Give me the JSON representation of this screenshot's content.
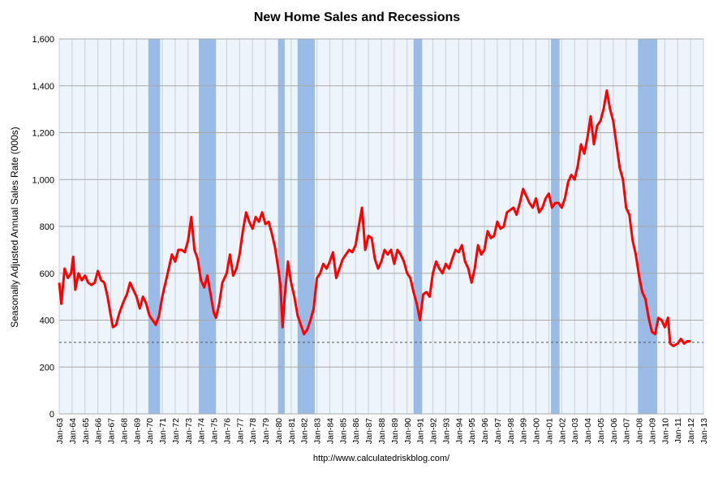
{
  "chart_data": {
    "type": "line",
    "title": "New Home Sales and Recessions",
    "ylabel": "Seasonally Adjusted Annual Sales Rate (000s)",
    "xlabel": "",
    "source": "http://www.calculatedriskblog.com/",
    "ylim": [
      0,
      1600
    ],
    "yticks": [
      "0",
      "200",
      "400",
      "600",
      "800",
      "1,000",
      "1,200",
      "1,400",
      "1,600"
    ],
    "x_range": [
      "1963-01",
      "2013-01"
    ],
    "xticks": [
      "Jan-63",
      "Jan-64",
      "Jan-65",
      "Jan-66",
      "Jan-67",
      "Jan-68",
      "Jan-69",
      "Jan-70",
      "Jan-71",
      "Jan-72",
      "Jan-73",
      "Jan-74",
      "Jan-75",
      "Jan-76",
      "Jan-77",
      "Jan-78",
      "Jan-79",
      "Jan-80",
      "Jan-81",
      "Jan-82",
      "Jan-83",
      "Jan-84",
      "Jan-85",
      "Jan-86",
      "Jan-87",
      "Jan-88",
      "Jan-89",
      "Jan-90",
      "Jan-91",
      "Jan-92",
      "Jan-93",
      "Jan-94",
      "Jan-95",
      "Jan-96",
      "Jan-97",
      "Jan-98",
      "Jan-99",
      "Jan-00",
      "Jan-01",
      "Jan-02",
      "Jan-03",
      "Jan-04",
      "Jan-05",
      "Jan-06",
      "Jan-07",
      "Jan-08",
      "Jan-09",
      "Jan-10",
      "Jan-11",
      "Jan-12",
      "Jan-13"
    ],
    "grid": true,
    "reference_line": 305,
    "recessions": [
      [
        "1969-12",
        "1970-11"
      ],
      [
        "1973-11",
        "1975-03"
      ],
      [
        "1980-01",
        "1980-07"
      ],
      [
        "1981-07",
        "1982-11"
      ],
      [
        "1990-07",
        "1991-03"
      ],
      [
        "2001-03",
        "2001-11"
      ],
      [
        "2007-12",
        "2009-06"
      ]
    ],
    "series": [
      {
        "color": "#ff0000",
        "recession_color": "#99bbe6",
        "points": [
          [
            "1963-01",
            560
          ],
          [
            "1963-03",
            470
          ],
          [
            "1963-06",
            620
          ],
          [
            "1963-09",
            580
          ],
          [
            "1963-12",
            600
          ],
          [
            "1964-02",
            670
          ],
          [
            "1964-04",
            530
          ],
          [
            "1964-07",
            600
          ],
          [
            "1964-10",
            570
          ],
          [
            "1965-01",
            590
          ],
          [
            "1965-04",
            560
          ],
          [
            "1965-07",
            550
          ],
          [
            "1965-10",
            560
          ],
          [
            "1966-01",
            610
          ],
          [
            "1966-04",
            570
          ],
          [
            "1966-07",
            560
          ],
          [
            "1966-10",
            500
          ],
          [
            "1967-01",
            420
          ],
          [
            "1967-03",
            370
          ],
          [
            "1967-06",
            380
          ],
          [
            "1967-09",
            430
          ],
          [
            "1968-01",
            480
          ],
          [
            "1968-04",
            510
          ],
          [
            "1968-07",
            560
          ],
          [
            "1968-10",
            530
          ],
          [
            "1969-01",
            500
          ],
          [
            "1969-04",
            450
          ],
          [
            "1969-07",
            500
          ],
          [
            "1969-10",
            470
          ],
          [
            "1970-01",
            420
          ],
          [
            "1970-04",
            400
          ],
          [
            "1970-07",
            380
          ],
          [
            "1970-10",
            420
          ],
          [
            "1971-01",
            500
          ],
          [
            "1971-04",
            560
          ],
          [
            "1971-07",
            620
          ],
          [
            "1971-10",
            680
          ],
          [
            "1972-01",
            650
          ],
          [
            "1972-04",
            700
          ],
          [
            "1972-07",
            700
          ],
          [
            "1972-10",
            690
          ],
          [
            "1973-01",
            740
          ],
          [
            "1973-04",
            840
          ],
          [
            "1973-07",
            700
          ],
          [
            "1973-10",
            660
          ],
          [
            "1974-01",
            570
          ],
          [
            "1974-04",
            540
          ],
          [
            "1974-07",
            590
          ],
          [
            "1974-10",
            510
          ],
          [
            "1975-01",
            430
          ],
          [
            "1975-03",
            410
          ],
          [
            "1975-06",
            470
          ],
          [
            "1975-09",
            560
          ],
          [
            "1976-01",
            600
          ],
          [
            "1976-04",
            680
          ],
          [
            "1976-07",
            590
          ],
          [
            "1976-10",
            620
          ],
          [
            "1977-01",
            680
          ],
          [
            "1977-04",
            780
          ],
          [
            "1977-07",
            860
          ],
          [
            "1977-10",
            820
          ],
          [
            "1978-01",
            790
          ],
          [
            "1978-04",
            840
          ],
          [
            "1978-07",
            820
          ],
          [
            "1978-10",
            860
          ],
          [
            "1979-01",
            810
          ],
          [
            "1979-04",
            820
          ],
          [
            "1979-07",
            770
          ],
          [
            "1979-10",
            710
          ],
          [
            "1980-01",
            620
          ],
          [
            "1980-03",
            550
          ],
          [
            "1980-05",
            370
          ],
          [
            "1980-07",
            500
          ],
          [
            "1980-10",
            650
          ],
          [
            "1981-01",
            560
          ],
          [
            "1981-04",
            500
          ],
          [
            "1981-07",
            420
          ],
          [
            "1981-10",
            380
          ],
          [
            "1982-01",
            340
          ],
          [
            "1982-04",
            360
          ],
          [
            "1982-07",
            400
          ],
          [
            "1982-10",
            450
          ],
          [
            "1983-01",
            580
          ],
          [
            "1983-04",
            600
          ],
          [
            "1983-07",
            640
          ],
          [
            "1983-10",
            620
          ],
          [
            "1984-01",
            650
          ],
          [
            "1984-04",
            690
          ],
          [
            "1984-07",
            580
          ],
          [
            "1984-10",
            620
          ],
          [
            "1985-01",
            660
          ],
          [
            "1985-04",
            680
          ],
          [
            "1985-07",
            700
          ],
          [
            "1985-10",
            690
          ],
          [
            "1986-01",
            720
          ],
          [
            "1986-04",
            800
          ],
          [
            "1986-07",
            880
          ],
          [
            "1986-10",
            700
          ],
          [
            "1987-01",
            760
          ],
          [
            "1987-04",
            750
          ],
          [
            "1987-07",
            660
          ],
          [
            "1987-10",
            620
          ],
          [
            "1988-01",
            650
          ],
          [
            "1988-04",
            700
          ],
          [
            "1988-07",
            680
          ],
          [
            "1988-10",
            700
          ],
          [
            "1989-01",
            640
          ],
          [
            "1989-04",
            700
          ],
          [
            "1989-07",
            680
          ],
          [
            "1989-10",
            650
          ],
          [
            "1990-01",
            600
          ],
          [
            "1990-04",
            580
          ],
          [
            "1990-07",
            520
          ],
          [
            "1990-10",
            470
          ],
          [
            "1991-01",
            400
          ],
          [
            "1991-04",
            510
          ],
          [
            "1991-07",
            520
          ],
          [
            "1991-10",
            500
          ],
          [
            "1992-01",
            600
          ],
          [
            "1992-04",
            650
          ],
          [
            "1992-07",
            620
          ],
          [
            "1992-10",
            600
          ],
          [
            "1993-01",
            640
          ],
          [
            "1993-04",
            620
          ],
          [
            "1993-07",
            660
          ],
          [
            "1993-10",
            700
          ],
          [
            "1994-01",
            690
          ],
          [
            "1994-04",
            720
          ],
          [
            "1994-07",
            650
          ],
          [
            "1994-10",
            620
          ],
          [
            "1995-01",
            560
          ],
          [
            "1995-04",
            620
          ],
          [
            "1995-07",
            720
          ],
          [
            "1995-10",
            680
          ],
          [
            "1996-01",
            700
          ],
          [
            "1996-04",
            780
          ],
          [
            "1996-07",
            750
          ],
          [
            "1996-10",
            760
          ],
          [
            "1997-01",
            820
          ],
          [
            "1997-04",
            790
          ],
          [
            "1997-07",
            800
          ],
          [
            "1997-10",
            860
          ],
          [
            "1998-01",
            870
          ],
          [
            "1998-04",
            880
          ],
          [
            "1998-07",
            850
          ],
          [
            "1998-10",
            900
          ],
          [
            "1999-01",
            960
          ],
          [
            "1999-04",
            930
          ],
          [
            "1999-07",
            900
          ],
          [
            "1999-10",
            880
          ],
          [
            "2000-01",
            920
          ],
          [
            "2000-04",
            860
          ],
          [
            "2000-07",
            880
          ],
          [
            "2000-10",
            920
          ],
          [
            "2001-01",
            940
          ],
          [
            "2001-04",
            880
          ],
          [
            "2001-07",
            900
          ],
          [
            "2001-10",
            900
          ],
          [
            "2002-01",
            880
          ],
          [
            "2002-04",
            920
          ],
          [
            "2002-07",
            990
          ],
          [
            "2002-10",
            1020
          ],
          [
            "2003-01",
            1000
          ],
          [
            "2003-04",
            1060
          ],
          [
            "2003-07",
            1150
          ],
          [
            "2003-10",
            1110
          ],
          [
            "2004-01",
            1180
          ],
          [
            "2004-04",
            1270
          ],
          [
            "2004-07",
            1150
          ],
          [
            "2004-10",
            1230
          ],
          [
            "2005-01",
            1250
          ],
          [
            "2005-04",
            1300
          ],
          [
            "2005-07",
            1380
          ],
          [
            "2005-10",
            1300
          ],
          [
            "2006-01",
            1250
          ],
          [
            "2006-04",
            1150
          ],
          [
            "2006-07",
            1050
          ],
          [
            "2006-10",
            1000
          ],
          [
            "2007-01",
            880
          ],
          [
            "2007-04",
            850
          ],
          [
            "2007-07",
            740
          ],
          [
            "2007-10",
            680
          ],
          [
            "2008-01",
            590
          ],
          [
            "2008-04",
            520
          ],
          [
            "2008-07",
            490
          ],
          [
            "2008-10",
            410
          ],
          [
            "2009-01",
            350
          ],
          [
            "2009-04",
            340
          ],
          [
            "2009-07",
            410
          ],
          [
            "2009-10",
            400
          ],
          [
            "2010-01",
            370
          ],
          [
            "2010-04",
            410
          ],
          [
            "2010-06",
            300
          ],
          [
            "2010-09",
            290
          ],
          [
            "2011-01",
            300
          ],
          [
            "2011-04",
            320
          ],
          [
            "2011-07",
            300
          ],
          [
            "2011-10",
            310
          ],
          [
            "2012-01",
            310
          ]
        ]
      }
    ]
  }
}
